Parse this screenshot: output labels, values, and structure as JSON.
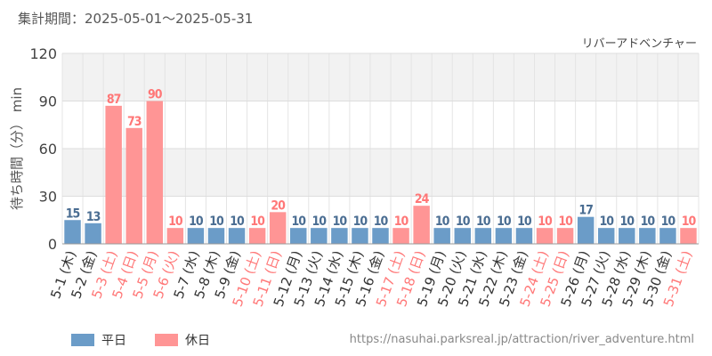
{
  "header": {
    "period": "集計期間：2025-05-01～2025-05-31"
  },
  "legend": {
    "weekday": "平日",
    "holiday": "休日"
  },
  "source": {
    "url": "https://nasuhai.parksreal.jp/attraction/river_adventure.html"
  },
  "colors": {
    "weekday": "#6b9cc8",
    "holiday": "#ff9595",
    "holiday_text": "#ff7777",
    "weekday_text": "#4a6d92"
  },
  "chart_data": {
    "type": "bar",
    "title": "リバーアドベンチャー",
    "ylabel": "待ち時間（分） min",
    "ylim": [
      0,
      120
    ],
    "yticks": [
      0,
      30,
      60,
      90,
      120
    ],
    "categories": [
      "5-1 (木)",
      "5-2 (金)",
      "5-3 (土)",
      "5-4 (日)",
      "5-5 (月)",
      "5-6 (火)",
      "5-7 (水)",
      "5-8 (木)",
      "5-9 (金)",
      "5-10 (土)",
      "5-11 (日)",
      "5-12 (月)",
      "5-13 (火)",
      "5-14 (水)",
      "5-15 (木)",
      "5-16 (金)",
      "5-17 (土)",
      "5-18 (日)",
      "5-19 (月)",
      "5-20 (火)",
      "5-21 (水)",
      "5-22 (木)",
      "5-23 (金)",
      "5-24 (土)",
      "5-25 (日)",
      "5-26 (月)",
      "5-27 (火)",
      "5-28 (水)",
      "5-29 (木)",
      "5-30 (金)",
      "5-31 (土)"
    ],
    "values": [
      15,
      13,
      87,
      73,
      90,
      10,
      10,
      10,
      10,
      10,
      20,
      10,
      10,
      10,
      10,
      10,
      10,
      24,
      10,
      10,
      10,
      10,
      10,
      10,
      10,
      17,
      10,
      10,
      10,
      10,
      10
    ],
    "holiday": [
      false,
      false,
      true,
      true,
      true,
      true,
      false,
      false,
      false,
      true,
      true,
      false,
      false,
      false,
      false,
      false,
      true,
      true,
      false,
      false,
      false,
      false,
      false,
      true,
      true,
      false,
      false,
      false,
      false,
      false,
      true
    ]
  }
}
